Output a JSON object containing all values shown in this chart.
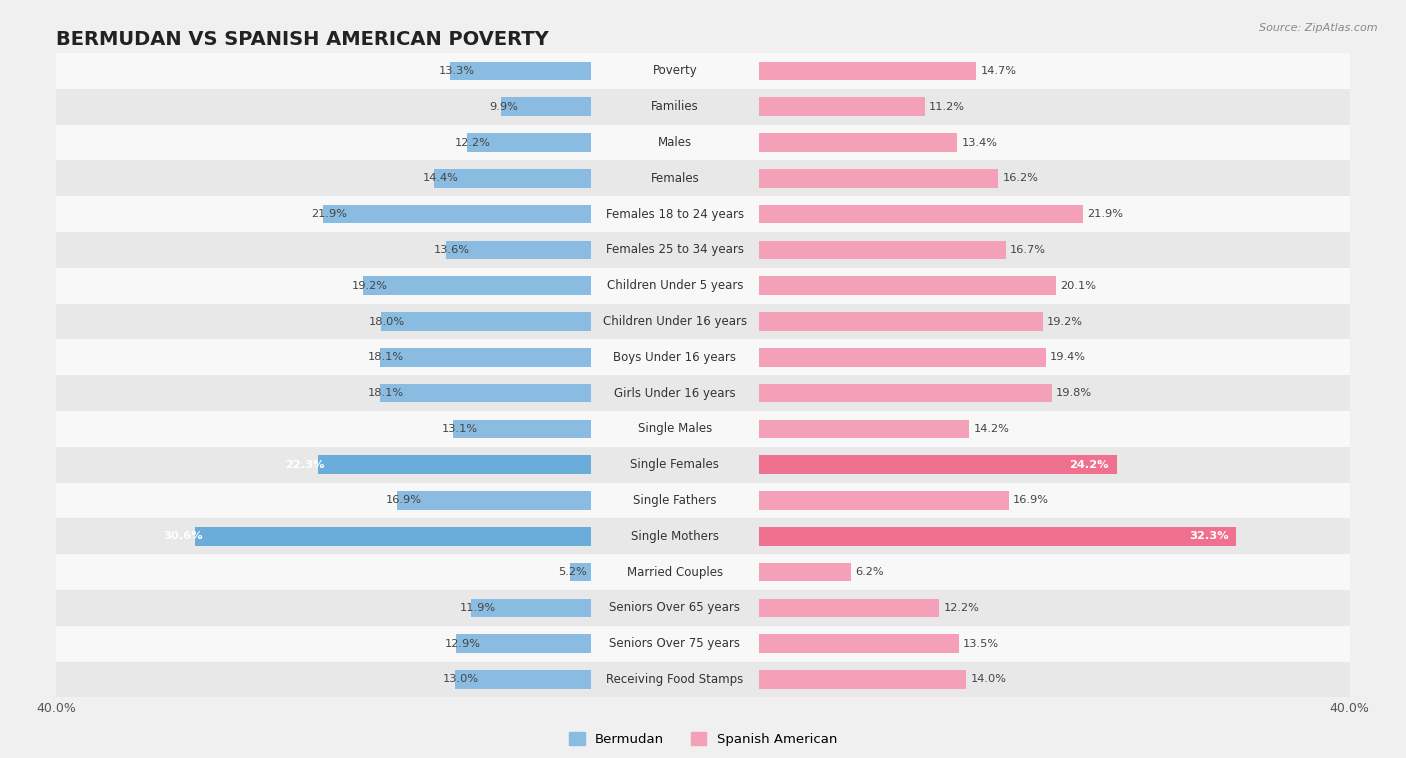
{
  "title": "BERMUDAN VS SPANISH AMERICAN POVERTY",
  "source": "Source: ZipAtlas.com",
  "categories": [
    "Poverty",
    "Families",
    "Males",
    "Females",
    "Females 18 to 24 years",
    "Females 25 to 34 years",
    "Children Under 5 years",
    "Children Under 16 years",
    "Boys Under 16 years",
    "Girls Under 16 years",
    "Single Males",
    "Single Females",
    "Single Fathers",
    "Single Mothers",
    "Married Couples",
    "Seniors Over 65 years",
    "Seniors Over 75 years",
    "Receiving Food Stamps"
  ],
  "bermudan": [
    13.3,
    9.9,
    12.2,
    14.4,
    21.9,
    13.6,
    19.2,
    18.0,
    18.1,
    18.1,
    13.1,
    22.3,
    16.9,
    30.6,
    5.2,
    11.9,
    12.9,
    13.0
  ],
  "spanish_american": [
    14.7,
    11.2,
    13.4,
    16.2,
    21.9,
    16.7,
    20.1,
    19.2,
    19.4,
    19.8,
    14.2,
    24.2,
    16.9,
    32.3,
    6.2,
    12.2,
    13.5,
    14.0
  ],
  "bermudan_color": "#89BCE0",
  "spanish_american_color": "#F4A0B8",
  "bermudan_label": "Bermudan",
  "spanish_american_label": "Spanish American",
  "xlim": 40.0,
  "bar_height": 0.52,
  "bg_color": "#f0f0f0",
  "row_colors": [
    "#e8e8e8",
    "#f8f8f8"
  ],
  "title_fontsize": 14,
  "label_fontsize": 8.5,
  "value_fontsize": 8.2,
  "highlighted_rows": [
    11,
    13
  ],
  "highlighted_bermudan_color": "#6AACDA",
  "highlighted_spanish_color": "#F07090"
}
